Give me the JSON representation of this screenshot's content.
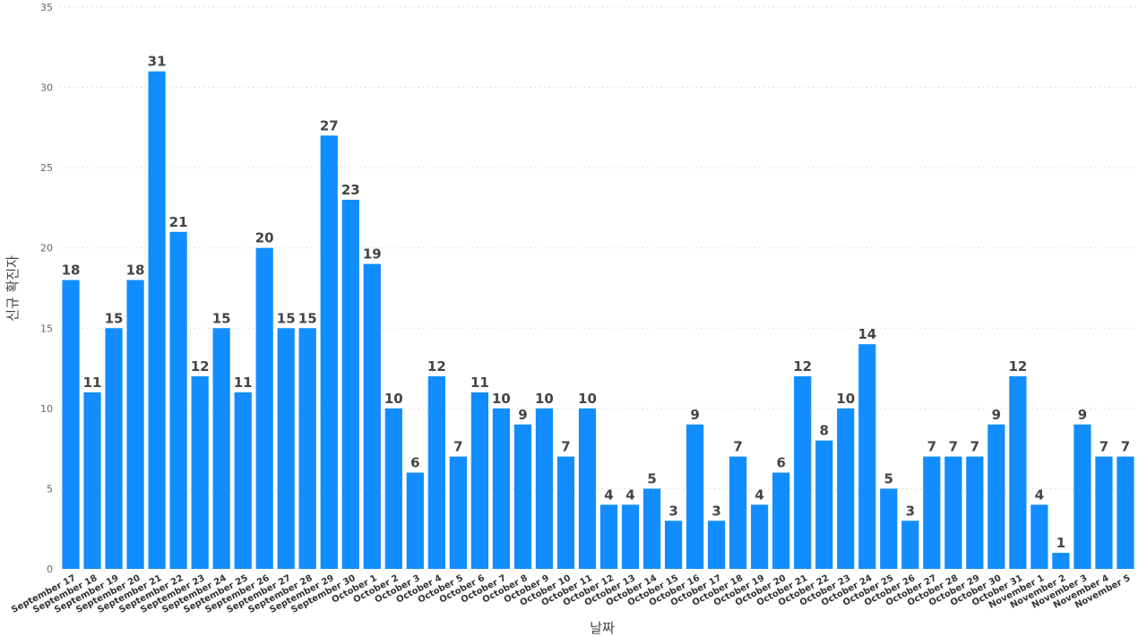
{
  "chart_data": {
    "type": "bar",
    "title": "",
    "xlabel": "날짜",
    "ylabel": "신규 확진자",
    "ylim": [
      0,
      35
    ],
    "yticks": [
      0,
      5,
      10,
      15,
      20,
      25,
      30,
      35
    ],
    "grid": true,
    "bar_color": "#118DFF",
    "categories": [
      "September 17",
      "September 18",
      "September 19",
      "September 20",
      "September 21",
      "September 22",
      "September 23",
      "September 24",
      "September 25",
      "September 26",
      "September 27",
      "September 28",
      "September 29",
      "September 30",
      "October 1",
      "October 2",
      "October 3",
      "October 4",
      "October 5",
      "October 6",
      "October 7",
      "October 8",
      "October 9",
      "October 10",
      "October 11",
      "October 12",
      "October 13",
      "October 14",
      "October 15",
      "October 16",
      "October 17",
      "October 18",
      "October 19",
      "October 20",
      "October 21",
      "October 22",
      "October 23",
      "October 24",
      "October 25",
      "October 26",
      "October 27",
      "October 28",
      "October 29",
      "October 30",
      "October 31",
      "November 1",
      "November 2",
      "November 3",
      "November 4",
      "November 5"
    ],
    "values": [
      18,
      11,
      15,
      18,
      31,
      21,
      12,
      15,
      11,
      20,
      15,
      15,
      27,
      23,
      19,
      10,
      6,
      12,
      7,
      11,
      10,
      9,
      10,
      7,
      10,
      4,
      4,
      5,
      3,
      9,
      3,
      7,
      4,
      6,
      12,
      8,
      10,
      14,
      5,
      3,
      7,
      7,
      7,
      9,
      12,
      4,
      1,
      9,
      7,
      7
    ]
  }
}
